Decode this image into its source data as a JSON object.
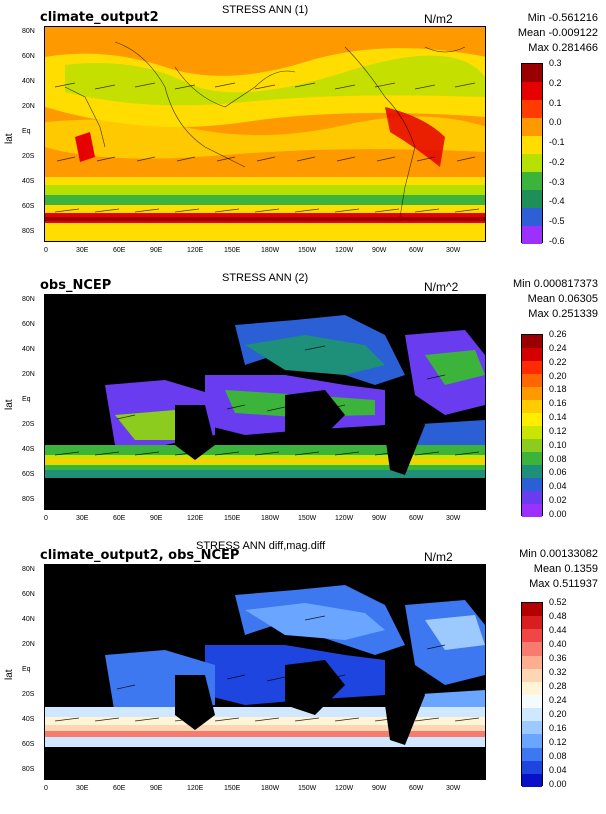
{
  "panels": [
    {
      "title": "STRESS ANN (1)",
      "name": "climate_output2",
      "units": "N/m2",
      "stats": {
        "min": "Min -0.561216",
        "mean": "Mean -0.009122",
        "max": "Max 0.281466"
      },
      "ylabel": "lat",
      "colorbar": {
        "labels": [
          "0.3",
          "0.2",
          "0.1",
          "0.0",
          "-0.1",
          "-0.2",
          "-0.3",
          "-0.4",
          "-0.5",
          "-0.6"
        ],
        "colors": [
          "#9b0000",
          "#e60000",
          "#ff3b00",
          "#ff9900",
          "#ffdd00",
          "#b5e000",
          "#3cb43c",
          "#1f8f5a",
          "#2e5fd6",
          "#9b30ff"
        ]
      }
    },
    {
      "title": "STRESS ANN (2)",
      "name": "obs_NCEP",
      "units": "N/m^2",
      "stats": {
        "min": "Min 0.000817373",
        "mean": "Mean 0.06305",
        "max": "Max 0.251339"
      },
      "ylabel": "lat",
      "colorbar": {
        "labels": [
          "0.26",
          "0.24",
          "0.22",
          "0.20",
          "0.18",
          "0.16",
          "0.14",
          "0.12",
          "0.10",
          "0.08",
          "0.06",
          "0.04",
          "0.02",
          "0.00"
        ],
        "colors": [
          "#9b0000",
          "#d40000",
          "#ff2a00",
          "#ff6600",
          "#ff9900",
          "#ffcc00",
          "#ffee00",
          "#c8e600",
          "#8ccc1e",
          "#3cb43c",
          "#1e8f78",
          "#2a5fd6",
          "#6a3cf0",
          "#9b30ff"
        ]
      }
    },
    {
      "title": "STRESS ANN diff,mag.diff",
      "name": "climate_output2, obs_NCEP",
      "units": "N/m2",
      "stats": {
        "min": "Min 0.00133082",
        "mean": "Mean 0.1359",
        "max": "Max 0.511937"
      },
      "ylabel": "lat",
      "colorbar": {
        "labels": [
          "0.52",
          "0.48",
          "0.44",
          "0.40",
          "0.36",
          "0.32",
          "0.28",
          "0.24",
          "0.20",
          "0.16",
          "0.12",
          "0.08",
          "0.04",
          "0.00"
        ],
        "colors": [
          "#b50000",
          "#d81e1e",
          "#f04646",
          "#f77b6e",
          "#fcae8f",
          "#fdd7b4",
          "#fff4d6",
          "#f4fbff",
          "#cfe8ff",
          "#9ccaff",
          "#6aa6ff",
          "#3d78f0",
          "#1e45e0",
          "#0a10c8"
        ]
      }
    }
  ],
  "axes": {
    "lat_ticks": [
      "80N",
      "60N",
      "40N",
      "20N",
      "Eq",
      "20S",
      "40S",
      "60S",
      "80S"
    ],
    "lon_ticks": [
      "0",
      "30E",
      "60E",
      "90E",
      "120E",
      "150E",
      "180W",
      "150W",
      "120W",
      "90W",
      "60W",
      "30W"
    ]
  }
}
